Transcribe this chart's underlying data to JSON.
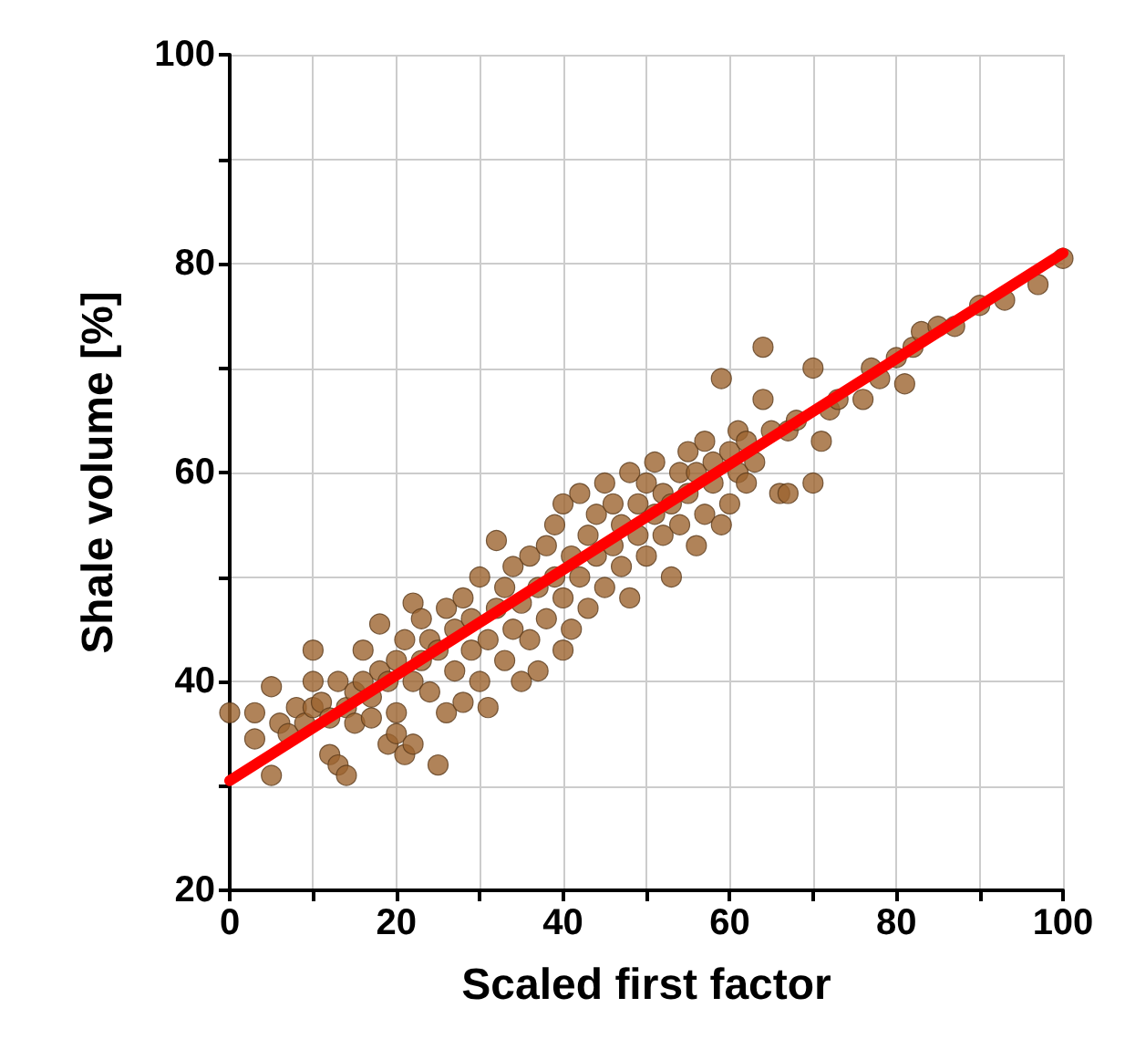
{
  "chart_data": {
    "type": "scatter",
    "xlabel": "Scaled first factor",
    "ylabel": "Shale volume [%]",
    "xlim": [
      0,
      100
    ],
    "ylim": [
      20,
      100
    ],
    "xticks": [
      0,
      {
        "value": 10,
        "label": null
      },
      20,
      {
        "value": 30,
        "label": null
      },
      40,
      {
        "value": 50,
        "label": null
      },
      60,
      {
        "value": 70,
        "label": null
      },
      80,
      {
        "value": 90,
        "label": null
      },
      100
    ],
    "yticks": [
      20,
      {
        "value": 30,
        "label": null
      },
      40,
      {
        "value": 50,
        "label": null
      },
      60,
      {
        "value": 70,
        "label": null
      },
      80,
      {
        "value": 90,
        "label": null
      },
      100
    ],
    "grid": true,
    "series": [
      {
        "marker": "circle",
        "color": "#9c6430",
        "x": [
          0,
          3,
          3,
          5,
          5,
          6,
          7,
          8,
          9,
          10,
          10,
          10,
          11,
          12,
          12,
          13,
          13,
          14,
          14,
          15,
          15,
          16,
          16,
          17,
          17,
          18,
          18,
          19,
          19,
          20,
          20,
          20,
          21,
          21,
          22,
          22,
          22,
          23,
          23,
          24,
          24,
          25,
          25,
          26,
          26,
          27,
          27,
          28,
          28,
          29,
          29,
          30,
          30,
          31,
          31,
          32,
          32,
          33,
          33,
          34,
          34,
          35,
          35,
          36,
          36,
          37,
          37,
          38,
          38,
          39,
          39,
          40,
          40,
          40,
          41,
          41,
          42,
          42,
          43,
          43,
          44,
          44,
          45,
          45,
          46,
          46,
          47,
          47,
          48,
          48,
          49,
          49,
          50,
          50,
          51,
          51,
          52,
          52,
          53,
          53,
          54,
          54,
          55,
          55,
          56,
          56,
          57,
          57,
          58,
          58,
          59,
          59,
          60,
          60,
          61,
          61,
          62,
          62,
          63,
          64,
          64,
          65,
          66,
          67,
          67,
          68,
          70,
          70,
          71,
          72,
          73,
          76,
          77,
          78,
          80,
          81,
          82,
          83,
          85,
          87,
          90,
          93,
          97,
          100
        ],
        "values": [
          37,
          37,
          34.5,
          31,
          39.5,
          36,
          35,
          37.5,
          36,
          43,
          37.5,
          40,
          38,
          33,
          36.5,
          40,
          32,
          31,
          37.5,
          36,
          39,
          40,
          43,
          36.5,
          38.5,
          41,
          45.5,
          34,
          40,
          42,
          37,
          35,
          44,
          33,
          47.5,
          40,
          34,
          42,
          46,
          39,
          44,
          32,
          43,
          47,
          37,
          45,
          41,
          38,
          48,
          43,
          46,
          40,
          50,
          44,
          37.5,
          53.5,
          47,
          42,
          49,
          45,
          51,
          40,
          47.5,
          52,
          44,
          49,
          41,
          53,
          46,
          55,
          50,
          43,
          57,
          48,
          52,
          45,
          58,
          50,
          54,
          47,
          56,
          52,
          59,
          49,
          53,
          57,
          55,
          51,
          60,
          48,
          54,
          57,
          59,
          52,
          56,
          61,
          54,
          58,
          57,
          50,
          60,
          55,
          62,
          58,
          53,
          60,
          63,
          56,
          59,
          61,
          55,
          69,
          62,
          57,
          60,
          64,
          63,
          59,
          61,
          67,
          72,
          64,
          58,
          58,
          64,
          65,
          70,
          59,
          63,
          66,
          67,
          67,
          70,
          69,
          71,
          68.5,
          72,
          73.5,
          74,
          74,
          76,
          76.5,
          78,
          80.5
        ]
      },
      {
        "type": "line",
        "marker": "none",
        "color": "#ff0000",
        "x": [
          0,
          100
        ],
        "values": [
          30.5,
          81
        ]
      }
    ]
  }
}
